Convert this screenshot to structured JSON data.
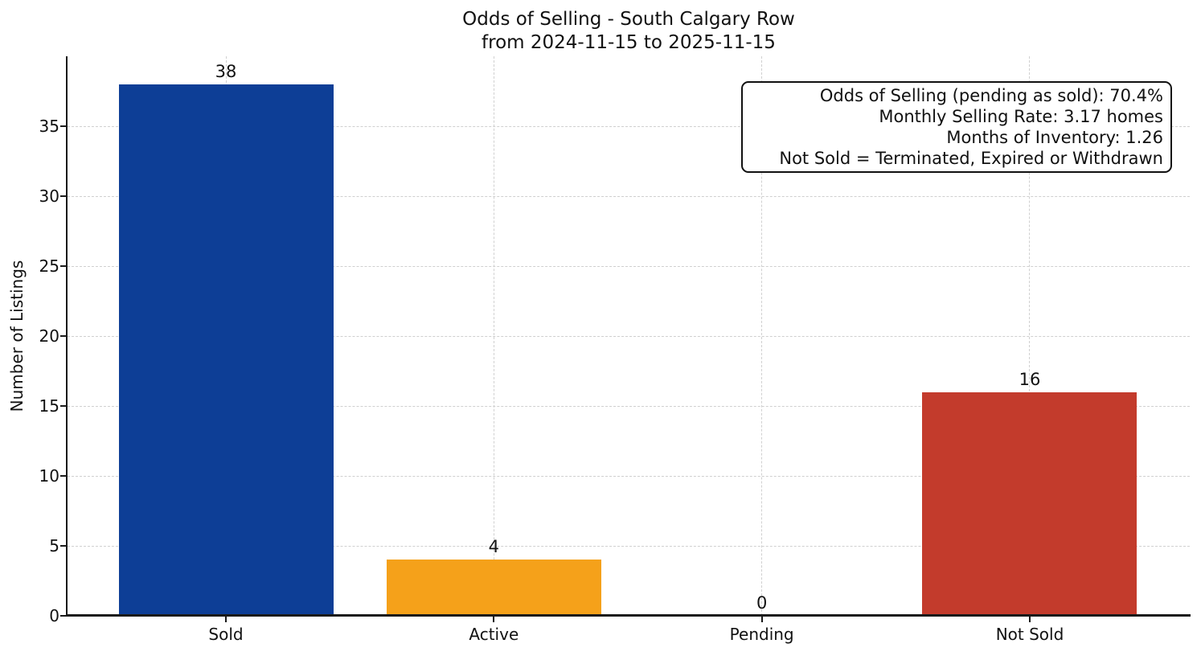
{
  "chart_data": {
    "type": "bar",
    "title": "Odds of Selling - South Calgary Row",
    "subtitle": "from 2024-11-15 to 2025-11-15",
    "ylabel": "Number of Listings",
    "categories": [
      "Sold",
      "Active",
      "Pending",
      "Not Sold"
    ],
    "values": [
      38,
      4,
      0,
      16
    ],
    "bar_value_labels": [
      "38",
      "4",
      "0",
      "16"
    ],
    "bar_colors": {
      "Sold": "#0d3e96",
      "Active": "#f5a11a",
      "Pending": "transparent",
      "Not Sold": "#c33b2c"
    },
    "yticks": [
      0,
      5,
      10,
      15,
      20,
      25,
      30,
      35
    ],
    "ylim": [
      0,
      40
    ],
    "grid": "dashed, horizontal at y ticks and vertical at category centers",
    "legend": "none",
    "annotation": {
      "position": "top-right",
      "lines": [
        "Odds of Selling (pending as sold): 70.4%",
        "Monthly Selling Rate: 3.17 homes",
        "Months of Inventory: 1.26",
        "Not Sold = Terminated, Expired or Withdrawn"
      ]
    },
    "colors": {
      "grid": "#d0d0d0",
      "axis": "#1a1a1a",
      "text": "#111111",
      "background": "#ffffff"
    }
  }
}
